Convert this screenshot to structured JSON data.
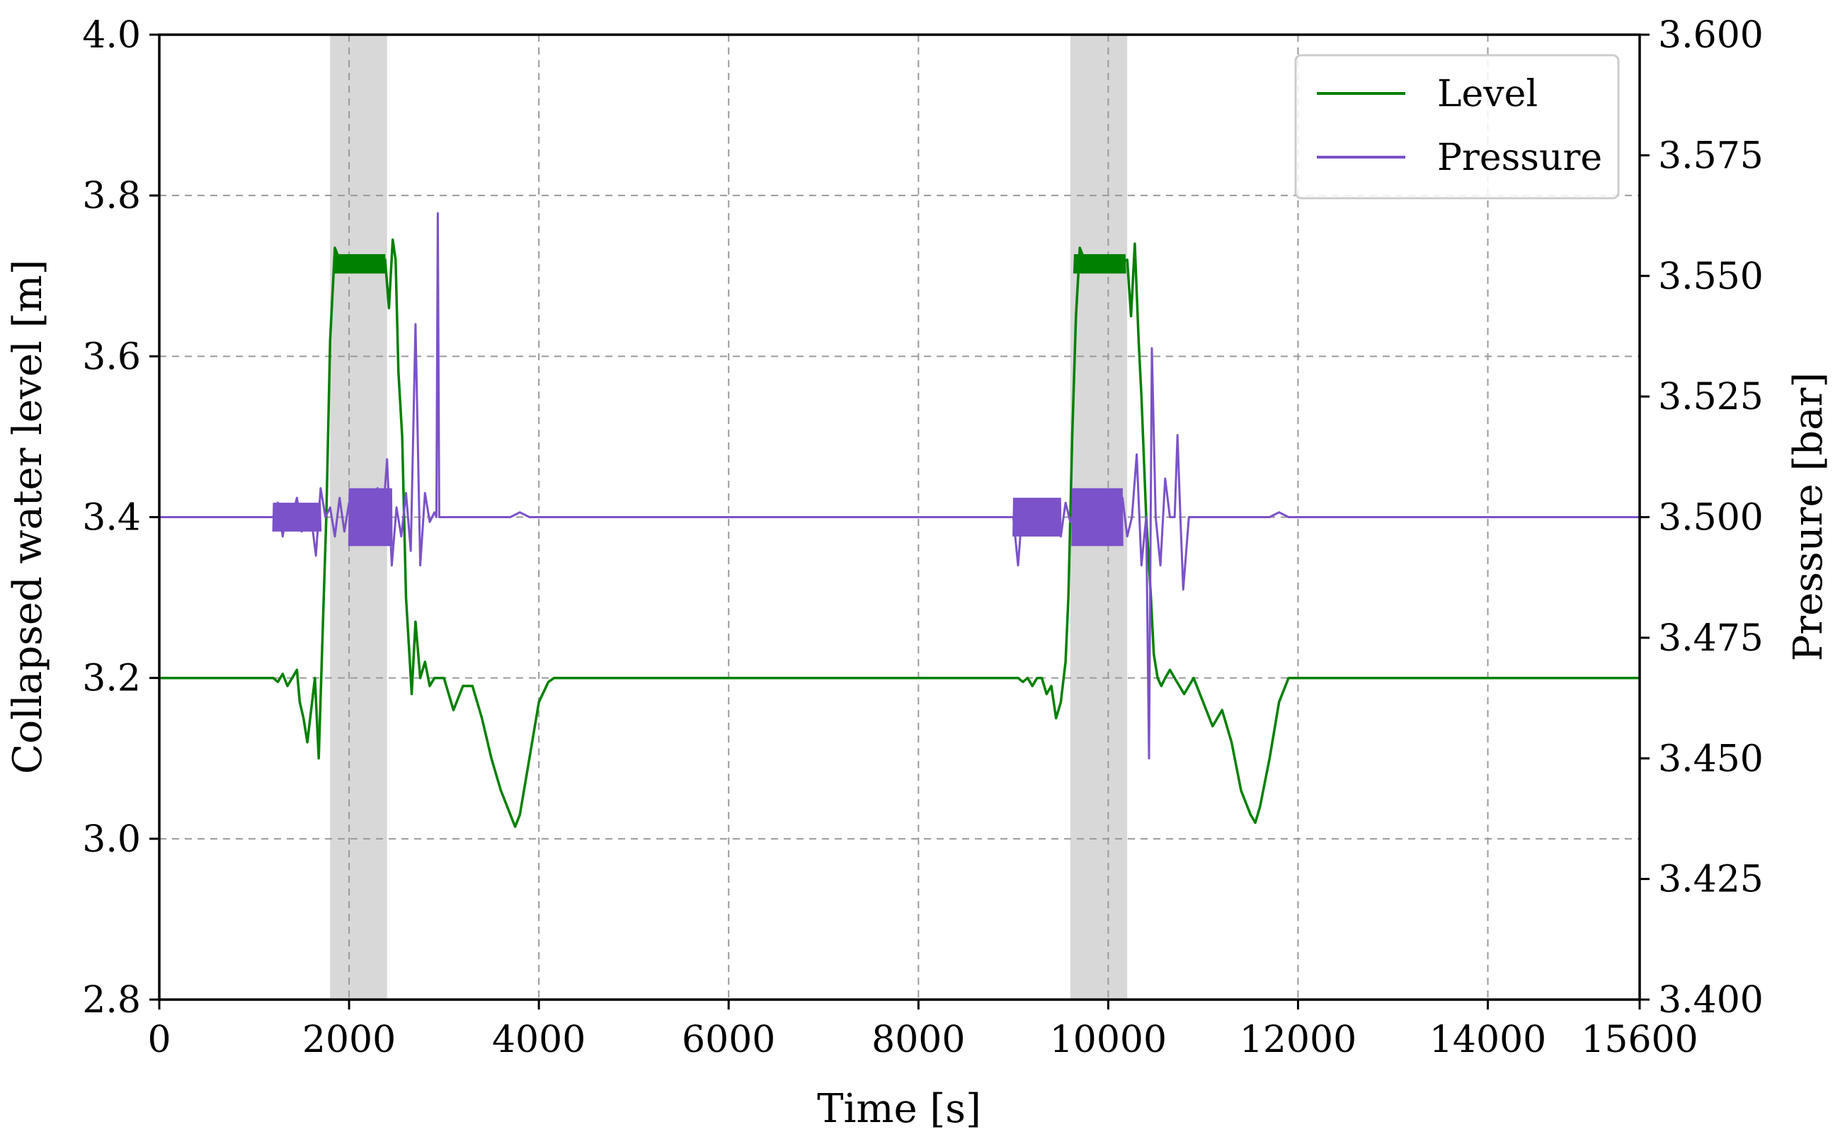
{
  "chart_data": {
    "type": "line",
    "title": "",
    "xlabel": "Time [s]",
    "ylabel_left": "Collapsed water level [m]",
    "ylabel_right": "Pressure [bar]",
    "xlim": [
      0,
      15600
    ],
    "ylim_left": [
      2.8,
      4.0
    ],
    "ylim_right": [
      3.4,
      3.6
    ],
    "xticks": [
      0,
      2000,
      4000,
      6000,
      8000,
      10000,
      12000,
      14000,
      15600
    ],
    "xtick_labels": [
      "0",
      "2000",
      "4000",
      "6000",
      "8000",
      "10000",
      "12000",
      "14000",
      "15600"
    ],
    "yticks_left": [
      2.8,
      3.0,
      3.2,
      3.4,
      3.6,
      3.8,
      4.0
    ],
    "ytick_labels_left": [
      "2.8",
      "3.0",
      "3.2",
      "3.4",
      "3.6",
      "3.8",
      "4.0"
    ],
    "yticks_right": [
      3.4,
      3.425,
      3.45,
      3.475,
      3.5,
      3.525,
      3.55,
      3.575,
      3.6
    ],
    "ytick_labels_right": [
      "3.400",
      "3.425",
      "3.450",
      "3.475",
      "3.500",
      "3.525",
      "3.550",
      "3.575",
      "3.600"
    ],
    "grid": true,
    "legend_position": "top-right",
    "shaded_regions": [
      {
        "x": [
          1800,
          2400
        ]
      },
      {
        "x": [
          9600,
          10200
        ]
      }
    ],
    "series": [
      {
        "name": "Level",
        "axis": "left",
        "color": "#008000",
        "x": [
          0,
          1200,
          1250,
          1300,
          1350,
          1400,
          1450,
          1480,
          1520,
          1560,
          1600,
          1640,
          1680,
          1720,
          1760,
          1800,
          1850,
          1900,
          2000,
          2100,
          2200,
          2300,
          2380,
          2420,
          2460,
          2490,
          2520,
          2560,
          2600,
          2640,
          2660,
          2700,
          2750,
          2800,
          2850,
          2900,
          2950,
          3000,
          3100,
          3200,
          3300,
          3400,
          3500,
          3600,
          3700,
          3750,
          3800,
          3900,
          4000,
          4100,
          4160,
          9000,
          9050,
          9100,
          9150,
          9200,
          9250,
          9300,
          9350,
          9400,
          9450,
          9500,
          9550,
          9580,
          9620,
          9660,
          9700,
          9750,
          9800,
          9900,
          10000,
          10100,
          10200,
          10240,
          10280,
          10320,
          10350,
          10400,
          10450,
          10480,
          10520,
          10560,
          10600,
          10650,
          10700,
          10750,
          10800,
          10900,
          11000,
          11100,
          11200,
          11300,
          11400,
          11500,
          11550,
          11600,
          11700,
          11800,
          11900,
          15600
        ],
        "y": [
          3.2,
          3.2,
          3.195,
          3.205,
          3.19,
          3.2,
          3.21,
          3.17,
          3.15,
          3.12,
          3.16,
          3.2,
          3.1,
          3.25,
          3.4,
          3.62,
          3.735,
          3.72,
          3.715,
          3.72,
          3.71,
          3.715,
          3.72,
          3.66,
          3.745,
          3.72,
          3.58,
          3.5,
          3.3,
          3.22,
          3.18,
          3.27,
          3.2,
          3.22,
          3.19,
          3.2,
          3.2,
          3.2,
          3.16,
          3.19,
          3.19,
          3.15,
          3.1,
          3.06,
          3.03,
          3.015,
          3.03,
          3.1,
          3.17,
          3.195,
          3.2,
          3.2,
          3.2,
          3.195,
          3.2,
          3.19,
          3.2,
          3.2,
          3.18,
          3.19,
          3.15,
          3.17,
          3.22,
          3.3,
          3.5,
          3.65,
          3.735,
          3.72,
          3.715,
          3.72,
          3.71,
          3.715,
          3.72,
          3.65,
          3.74,
          3.62,
          3.55,
          3.4,
          3.3,
          3.23,
          3.2,
          3.19,
          3.2,
          3.21,
          3.2,
          3.19,
          3.18,
          3.2,
          3.17,
          3.14,
          3.16,
          3.12,
          3.06,
          3.03,
          3.02,
          3.04,
          3.1,
          3.17,
          3.2,
          3.2
        ]
      },
      {
        "name": "Pressure",
        "axis": "right",
        "color": "#7b52c9",
        "baseline": 3.5,
        "x": [
          0,
          1200,
          1250,
          1300,
          1350,
          1400,
          1450,
          1500,
          1550,
          1600,
          1650,
          1700,
          1750,
          1800,
          1850,
          1900,
          1950,
          2000,
          2050,
          2100,
          2150,
          2200,
          2250,
          2300,
          2350,
          2400,
          2450,
          2500,
          2550,
          2600,
          2650,
          2700,
          2750,
          2800,
          2850,
          2900,
          2920,
          2935,
          2950,
          3000,
          3100,
          3200,
          3300,
          3400,
          3500,
          3600,
          3700,
          3800,
          3900,
          4000,
          5000,
          6000,
          7000,
          8000,
          9000,
          9050,
          9100,
          9150,
          9200,
          9250,
          9300,
          9350,
          9400,
          9450,
          9500,
          9550,
          9600,
          9650,
          9700,
          9750,
          9800,
          9850,
          9900,
          9950,
          10000,
          10050,
          10100,
          10150,
          10200,
          10250,
          10300,
          10350,
          10400,
          10430,
          10460,
          10500,
          10550,
          10600,
          10650,
          10700,
          10730,
          10760,
          10790,
          10850,
          10900,
          11000,
          11100,
          11200,
          11300,
          11400,
          11500,
          11600,
          11700,
          11800,
          11900,
          12000,
          13000,
          14000,
          15600
        ],
        "y": [
          3.5,
          3.5,
          3.503,
          3.496,
          3.502,
          3.5,
          3.504,
          3.497,
          3.499,
          3.5,
          3.492,
          3.506,
          3.5,
          3.502,
          3.496,
          3.504,
          3.497,
          3.503,
          3.495,
          3.505,
          3.497,
          3.503,
          3.495,
          3.506,
          3.498,
          3.512,
          3.49,
          3.502,
          3.496,
          3.505,
          3.493,
          3.54,
          3.49,
          3.505,
          3.499,
          3.501,
          3.5,
          3.563,
          3.5,
          3.5,
          3.5,
          3.5,
          3.5,
          3.5,
          3.5,
          3.5,
          3.5,
          3.501,
          3.5,
          3.5,
          3.5,
          3.5,
          3.5,
          3.5,
          3.5,
          3.49,
          3.503,
          3.497,
          3.502,
          3.499,
          3.503,
          3.497,
          3.5,
          3.502,
          3.496,
          3.503,
          3.499,
          3.502,
          3.497,
          3.505,
          3.495,
          3.504,
          3.496,
          3.503,
          3.497,
          3.505,
          3.495,
          3.504,
          3.496,
          3.5,
          3.513,
          3.49,
          3.5,
          3.45,
          3.535,
          3.5,
          3.49,
          3.508,
          3.5,
          3.5,
          3.517,
          3.5,
          3.485,
          3.5,
          3.5,
          3.5,
          3.5,
          3.5,
          3.5,
          3.5,
          3.5,
          3.5,
          3.5,
          3.501,
          3.5,
          3.5,
          3.5,
          3.5,
          3.5
        ]
      }
    ]
  }
}
